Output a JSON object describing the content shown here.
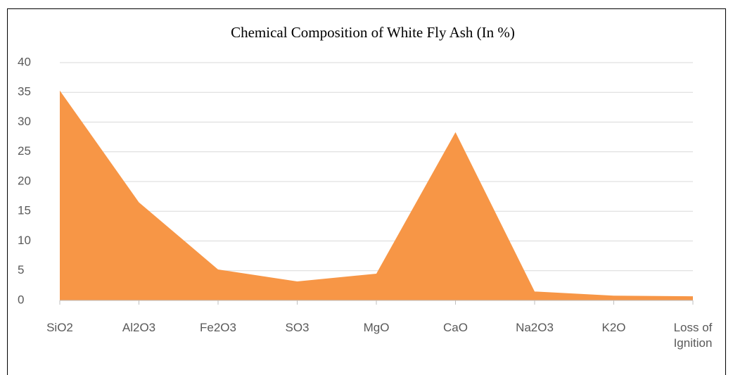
{
  "chart_data": {
    "type": "area",
    "title": "Chemical Composition of White Fly Ash (In %)",
    "categories": [
      "SiO2",
      "Al2O3",
      "Fe2O3",
      "SO3",
      "MgO",
      "CaO",
      "Na2O3",
      "K2O",
      "Loss of Ignition"
    ],
    "series": [
      {
        "name": "White Fly Ash",
        "color": "#f79646",
        "values": [
          35.3,
          16.5,
          5.2,
          3.2,
          4.5,
          28.3,
          1.5,
          0.8,
          0.7
        ]
      }
    ],
    "ylim": [
      0,
      40
    ],
    "yticks": [
      0,
      5,
      10,
      15,
      20,
      25,
      30,
      35,
      40
    ],
    "grid": true
  }
}
